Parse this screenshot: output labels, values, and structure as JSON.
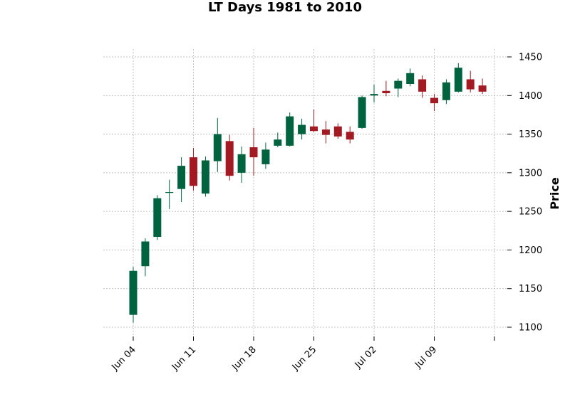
{
  "chart_data": {
    "type": "candlestick",
    "title": "LT Days 1981 to 2010",
    "ylabel": "Price",
    "ylim": [
      1090,
      1460
    ],
    "yticks": [
      1100,
      1150,
      1200,
      1250,
      1300,
      1350,
      1400,
      1450
    ],
    "xtick_labels": [
      "Jun 04",
      "Jun 11",
      "Jun 18",
      "Jun 25",
      "Jul 02",
      "Jul 09",
      ""
    ],
    "grid": true,
    "colors": {
      "up": "#006340",
      "down": "#a31a22",
      "grid": "#b0b0b0"
    },
    "candles": [
      {
        "open": 1116,
        "high": 1178,
        "low": 1106,
        "close": 1173
      },
      {
        "open": 1179,
        "high": 1215,
        "low": 1166,
        "close": 1211
      },
      {
        "open": 1217,
        "high": 1271,
        "low": 1213,
        "close": 1267
      },
      {
        "open": 1275,
        "high": 1291,
        "low": 1253,
        "close": 1275
      },
      {
        "open": 1279,
        "high": 1320,
        "low": 1262,
        "close": 1309
      },
      {
        "open": 1320,
        "high": 1332,
        "low": 1277,
        "close": 1283
      },
      {
        "open": 1273,
        "high": 1321,
        "low": 1269,
        "close": 1316
      },
      {
        "open": 1315,
        "high": 1371,
        "low": 1301,
        "close": 1350
      },
      {
        "open": 1341,
        "high": 1349,
        "low": 1290,
        "close": 1296
      },
      {
        "open": 1300,
        "high": 1334,
        "low": 1287,
        "close": 1324
      },
      {
        "open": 1333,
        "high": 1358,
        "low": 1296,
        "close": 1320
      },
      {
        "open": 1311,
        "high": 1339,
        "low": 1305,
        "close": 1330
      },
      {
        "open": 1335,
        "high": 1352,
        "low": 1333,
        "close": 1343
      },
      {
        "open": 1335,
        "high": 1378,
        "low": 1334,
        "close": 1373
      },
      {
        "open": 1350,
        "high": 1370,
        "low": 1343,
        "close": 1362
      },
      {
        "open": 1360,
        "high": 1382,
        "low": 1353,
        "close": 1354
      },
      {
        "open": 1356,
        "high": 1367,
        "low": 1338,
        "close": 1349
      },
      {
        "open": 1360,
        "high": 1364,
        "low": 1344,
        "close": 1347
      },
      {
        "open": 1353,
        "high": 1360,
        "low": 1338,
        "close": 1343
      },
      {
        "open": 1358,
        "high": 1400,
        "low": 1357,
        "close": 1398
      },
      {
        "open": 1400,
        "high": 1414,
        "low": 1391,
        "close": 1402
      },
      {
        "open": 1406,
        "high": 1419,
        "low": 1399,
        "close": 1403
      },
      {
        "open": 1409,
        "high": 1422,
        "low": 1398,
        "close": 1419
      },
      {
        "open": 1415,
        "high": 1435,
        "low": 1412,
        "close": 1429
      },
      {
        "open": 1421,
        "high": 1426,
        "low": 1397,
        "close": 1405
      },
      {
        "open": 1397,
        "high": 1402,
        "low": 1380,
        "close": 1390
      },
      {
        "open": 1394,
        "high": 1421,
        "low": 1389,
        "close": 1417
      },
      {
        "open": 1405,
        "high": 1442,
        "low": 1404,
        "close": 1436
      },
      {
        "open": 1421,
        "high": 1432,
        "low": 1404,
        "close": 1408
      },
      {
        "open": 1413,
        "high": 1422,
        "low": 1402,
        "close": 1405
      }
    ]
  }
}
